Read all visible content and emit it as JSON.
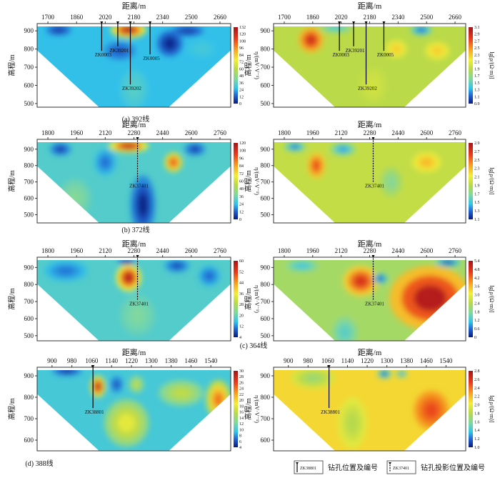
{
  "axis_titles": {
    "x": "距离/m",
    "y": "高程/m",
    "eta": "η/(mV·V⁻¹)",
    "rho": "lg[ρ/(Ω·m)]"
  },
  "captions": [
    "(a) 392线",
    "(b) 372线",
    "(c) 364线",
    "(d) 388线"
  ],
  "legend": {
    "drill_id": "ZK38801",
    "drill_label": "钻孔位置及编号",
    "proj_id": "ZK37401",
    "proj_label": "钻孔投影位置及编号"
  },
  "colors": {
    "frame": "#333333",
    "text": "#111111"
  },
  "chart_data": [
    {
      "type": "heatmap",
      "panel": "392-eta",
      "xlim": [
        1640,
        2720
      ],
      "ylim": [
        480,
        940
      ],
      "x_ticks": [
        "1700",
        "1860",
        "2020",
        "2180",
        "2340",
        "2500",
        "2660"
      ],
      "x_tick_values": [
        1700,
        1860,
        2020,
        2180,
        2340,
        2500,
        2660
      ],
      "y_ticks": [
        "900",
        "800",
        "700",
        "600",
        "500"
      ],
      "y_tick_values": [
        900,
        800,
        700,
        600,
        500
      ],
      "colorbar": {
        "title_key": "eta",
        "range": [
          0,
          132
        ],
        "ticks": [
          "0",
          "12",
          "24",
          "36",
          "48",
          "60",
          "72",
          "84",
          "96",
          "108",
          "120",
          "132"
        ]
      },
      "base_value": 26,
      "anomalies": [
        {
          "x": 1760,
          "z": 905,
          "rx": 70,
          "rz": 30,
          "v": 6
        },
        {
          "x": 2150,
          "z": 905,
          "rx": 100,
          "rz": 45,
          "v": 128
        },
        {
          "x": 2100,
          "z": 790,
          "rx": 90,
          "rz": 50,
          "v": 12
        },
        {
          "x": 2380,
          "z": 830,
          "rx": 70,
          "rz": 70,
          "v": 2
        },
        {
          "x": 2480,
          "z": 900,
          "rx": 90,
          "rz": 30,
          "v": 6
        },
        {
          "x": 2180,
          "z": 580,
          "rx": 80,
          "rz": 110,
          "v": 34
        },
        {
          "x": 2560,
          "z": 800,
          "rx": 80,
          "rz": 50,
          "v": 30
        }
      ],
      "boreholes": [
        {
          "id": "ZK0003",
          "x": 2000,
          "bottom": 790,
          "projected": false
        },
        {
          "id": "ZK39201",
          "x": 2090,
          "bottom": 815,
          "projected": false
        },
        {
          "id": "ZK39202",
          "x": 2160,
          "bottom": 605,
          "projected": false
        },
        {
          "id": "ZK0005",
          "x": 2270,
          "bottom": 770,
          "projected": false
        }
      ]
    },
    {
      "type": "heatmap",
      "panel": "392-rho",
      "xlim": [
        1640,
        2720
      ],
      "ylim": [
        480,
        940
      ],
      "x_ticks": [
        "1700",
        "1860",
        "2020",
        "2180",
        "2340",
        "2500",
        "2660"
      ],
      "x_tick_values": [
        1700,
        1860,
        2020,
        2180,
        2340,
        2500,
        2660
      ],
      "y_ticks": [
        "900",
        "800",
        "700",
        "600",
        "500"
      ],
      "y_tick_values": [
        900,
        800,
        700,
        600,
        500
      ],
      "colorbar": {
        "title_key": "rho",
        "range": [
          0.9,
          3.1
        ],
        "ticks": [
          "0.9",
          "1.1",
          "1.3",
          "1.5",
          "1.7",
          "1.9",
          "2.1",
          "2.3",
          "2.5",
          "2.7",
          "2.9",
          "3.1"
        ]
      },
      "base_value": 1.9,
      "anomalies": [
        {
          "x": 1850,
          "z": 850,
          "rx": 70,
          "rz": 70,
          "v": 2.9
        },
        {
          "x": 1990,
          "z": 915,
          "rx": 90,
          "rz": 25,
          "v": 1.4
        },
        {
          "x": 2470,
          "z": 905,
          "rx": 60,
          "rz": 30,
          "v": 1.1
        },
        {
          "x": 2330,
          "z": 800,
          "rx": 60,
          "rz": 50,
          "v": 2.3
        },
        {
          "x": 2560,
          "z": 790,
          "rx": 70,
          "rz": 50,
          "v": 2.3
        },
        {
          "x": 2200,
          "z": 600,
          "rx": 80,
          "rz": 100,
          "v": 2.0
        }
      ],
      "boreholes": [
        {
          "id": "ZK0003",
          "x": 2010,
          "bottom": 790,
          "projected": false
        },
        {
          "id": "ZK39201",
          "x": 2090,
          "bottom": 815,
          "projected": false
        },
        {
          "id": "ZK39202",
          "x": 2160,
          "bottom": 605,
          "projected": false
        },
        {
          "id": "ZK0005",
          "x": 2260,
          "bottom": 790,
          "projected": false
        }
      ]
    },
    {
      "type": "heatmap",
      "panel": "372-eta",
      "xlim": [
        1740,
        2820
      ],
      "ylim": [
        450,
        960
      ],
      "x_ticks": [
        "1800",
        "1960",
        "2120",
        "2280",
        "2440",
        "2600",
        "2760"
      ],
      "x_tick_values": [
        1800,
        1960,
        2120,
        2280,
        2440,
        2600,
        2760
      ],
      "y_ticks": [
        "900",
        "800",
        "700",
        "600",
        "500"
      ],
      "y_tick_values": [
        900,
        800,
        700,
        600,
        500
      ],
      "colorbar": {
        "title_key": "eta",
        "range": [
          0,
          120
        ],
        "ticks": [
          "0",
          "12",
          "24",
          "36",
          "48",
          "60",
          "72",
          "84",
          "96",
          "108",
          "120"
        ]
      },
      "base_value": 30,
      "anomalies": [
        {
          "x": 1870,
          "z": 900,
          "rx": 60,
          "rz": 40,
          "v": 6
        },
        {
          "x": 2250,
          "z": 920,
          "rx": 110,
          "rz": 40,
          "v": 115
        },
        {
          "x": 2500,
          "z": 820,
          "rx": 50,
          "rz": 60,
          "v": 100
        },
        {
          "x": 2330,
          "z": 560,
          "rx": 70,
          "rz": 180,
          "v": 2
        },
        {
          "x": 2620,
          "z": 900,
          "rx": 60,
          "rz": 40,
          "v": 6
        },
        {
          "x": 2120,
          "z": 820,
          "rx": 60,
          "rz": 80,
          "v": 14
        },
        {
          "x": 1950,
          "z": 600,
          "rx": 90,
          "rz": 120,
          "v": 40
        }
      ],
      "boreholes": [
        {
          "id": "ZK37401",
          "x": 2300,
          "bottom": 700,
          "projected": true
        }
      ]
    },
    {
      "type": "heatmap",
      "panel": "372-rho",
      "xlim": [
        1740,
        2820
      ],
      "ylim": [
        450,
        960
      ],
      "x_ticks": [
        "1800",
        "1960",
        "2120",
        "2280",
        "2440",
        "2600",
        "2760"
      ],
      "x_tick_values": [
        1800,
        1960,
        2120,
        2280,
        2440,
        2600,
        2760
      ],
      "y_ticks": [
        "900",
        "800",
        "700",
        "600",
        "500"
      ],
      "y_tick_values": [
        900,
        800,
        700,
        600,
        500
      ],
      "colorbar": {
        "title_key": "rho",
        "range": [
          1.1,
          2.9
        ],
        "ticks": [
          "1.1",
          "1.3",
          "1.5",
          "1.7",
          "1.9",
          "2.1",
          "2.3",
          "2.5",
          "2.7",
          "2.9"
        ]
      },
      "base_value": 1.95,
      "anomalies": [
        {
          "x": 1860,
          "z": 915,
          "rx": 60,
          "rz": 30,
          "v": 1.3
        },
        {
          "x": 1980,
          "z": 800,
          "rx": 50,
          "rz": 80,
          "v": 2.6
        },
        {
          "x": 2130,
          "z": 900,
          "rx": 70,
          "rz": 40,
          "v": 1.4
        },
        {
          "x": 2600,
          "z": 820,
          "rx": 80,
          "rz": 60,
          "v": 2.3
        },
        {
          "x": 2400,
          "z": 700,
          "rx": 60,
          "rz": 90,
          "v": 1.7
        }
      ],
      "boreholes": [
        {
          "id": "ZK37401",
          "x": 2300,
          "bottom": 700,
          "projected": true
        }
      ]
    },
    {
      "type": "heatmap",
      "panel": "364-eta",
      "xlim": [
        1740,
        2820
      ],
      "ylim": [
        470,
        960
      ],
      "x_ticks": [
        "1800",
        "1960",
        "2120",
        "2280",
        "2440",
        "2600",
        "2760"
      ],
      "x_tick_values": [
        1800,
        1960,
        2120,
        2280,
        2440,
        2600,
        2760
      ],
      "y_ticks": [
        "900",
        "800",
        "700",
        "600",
        "500"
      ],
      "y_tick_values": [
        900,
        800,
        700,
        600,
        500
      ],
      "colorbar": {
        "title_key": "eta",
        "range": [
          4,
          60
        ],
        "ticks": [
          "4",
          "12",
          "20",
          "28",
          "36",
          "44",
          "52",
          "60"
        ]
      },
      "base_value": 18,
      "anomalies": [
        {
          "x": 2250,
          "z": 840,
          "rx": 70,
          "rz": 80,
          "v": 58
        },
        {
          "x": 2240,
          "z": 935,
          "rx": 50,
          "rz": 20,
          "v": 4
        },
        {
          "x": 1900,
          "z": 880,
          "rx": 120,
          "rz": 60,
          "v": 11
        },
        {
          "x": 2520,
          "z": 910,
          "rx": 70,
          "rz": 40,
          "v": 8
        },
        {
          "x": 2700,
          "z": 850,
          "rx": 60,
          "rz": 60,
          "v": 10
        },
        {
          "x": 2300,
          "z": 620,
          "rx": 100,
          "rz": 120,
          "v": 22
        }
      ],
      "boreholes": [
        {
          "id": "ZK37401",
          "x": 2300,
          "bottom": 710,
          "projected": true
        }
      ]
    },
    {
      "type": "heatmap",
      "panel": "364-rho",
      "xlim": [
        1740,
        2820
      ],
      "ylim": [
        470,
        960
      ],
      "x_ticks": [
        "1800",
        "1960",
        "2120",
        "2280",
        "2440",
        "2600",
        "2760"
      ],
      "x_tick_values": [
        1800,
        1960,
        2120,
        2280,
        2440,
        2600,
        2760
      ],
      "y_ticks": [
        "900",
        "800",
        "700",
        "600",
        "500"
      ],
      "y_tick_values": [
        900,
        800,
        700,
        600,
        500
      ],
      "colorbar": {
        "title_key": "rho",
        "range": [
          0,
          5.4
        ],
        "ticks": [
          "0",
          "0.6",
          "1.2",
          "1.8",
          "2.4",
          "3.0",
          "3.6",
          "4.2",
          "4.8",
          "5.4"
        ]
      },
      "base_value": 2.2,
      "anomalies": [
        {
          "x": 2620,
          "z": 720,
          "rx": 230,
          "rz": 190,
          "v": 5.2
        },
        {
          "x": 2230,
          "z": 820,
          "rx": 100,
          "rz": 90,
          "v": 4.8
        },
        {
          "x": 2340,
          "z": 835,
          "rx": 40,
          "rz": 30,
          "v": 0.4
        },
        {
          "x": 2720,
          "z": 930,
          "rx": 70,
          "rz": 25,
          "v": 0.3
        },
        {
          "x": 1900,
          "z": 910,
          "rx": 90,
          "rz": 35,
          "v": 1.2
        },
        {
          "x": 2140,
          "z": 520,
          "rx": 70,
          "rz": 90,
          "v": 1.4
        }
      ],
      "boreholes": [
        {
          "id": "ZK37401",
          "x": 2300,
          "bottom": 710,
          "projected": true
        }
      ]
    },
    {
      "type": "heatmap",
      "panel": "388-eta",
      "xlim": [
        840,
        1620
      ],
      "ylim": [
        550,
        940
      ],
      "x_ticks": [
        "900",
        "980",
        "1060",
        "1140",
        "1220",
        "1300",
        "1380",
        "1460",
        "1540"
      ],
      "x_tick_values": [
        900,
        980,
        1060,
        1140,
        1220,
        1300,
        1380,
        1460,
        1540
      ],
      "y_ticks": [
        "900",
        "800",
        "700",
        "600"
      ],
      "y_tick_values": [
        900,
        800,
        700,
        600
      ],
      "colorbar": {
        "title_key": "eta",
        "range": [
          4,
          30
        ],
        "ticks": [
          "4",
          "6",
          "8",
          "10",
          "12",
          "14",
          "16",
          "18",
          "20",
          "22",
          "24",
          "26",
          "28",
          "30"
        ]
      },
      "base_value": 10,
      "anomalies": [
        {
          "x": 1085,
          "z": 850,
          "rx": 30,
          "rz": 50,
          "v": 29
        },
        {
          "x": 960,
          "z": 925,
          "rx": 60,
          "rz": 25,
          "v": 5
        },
        {
          "x": 1160,
          "z": 860,
          "rx": 25,
          "rz": 40,
          "v": 6
        },
        {
          "x": 1240,
          "z": 860,
          "rx": 30,
          "rz": 40,
          "v": 16
        },
        {
          "x": 1570,
          "z": 790,
          "rx": 50,
          "rz": 90,
          "v": 24
        },
        {
          "x": 1200,
          "z": 680,
          "rx": 90,
          "rz": 110,
          "v": 18
        },
        {
          "x": 1420,
          "z": 820,
          "rx": 90,
          "rz": 60,
          "v": 16
        }
      ],
      "boreholes": [
        {
          "id": "ZK38801",
          "x": 1065,
          "bottom": 750,
          "projected": false
        }
      ]
    },
    {
      "type": "heatmap",
      "panel": "388-rho",
      "xlim": [
        840,
        1620
      ],
      "ylim": [
        550,
        940
      ],
      "x_ticks": [
        "900",
        "980",
        "1060",
        "1140",
        "1220",
        "1300",
        "1380",
        "1460",
        "1540"
      ],
      "x_tick_values": [
        900,
        980,
        1060,
        1140,
        1220,
        1300,
        1380,
        1460,
        1540
      ],
      "y_ticks": [
        "900",
        "800",
        "700",
        "600"
      ],
      "y_tick_values": [
        900,
        800,
        700,
        600
      ],
      "colorbar": {
        "title_key": "rho",
        "range": [
          1.0,
          2.8
        ],
        "ticks": [
          "1.0",
          "1.2",
          "1.4",
          "1.6",
          "1.8",
          "2.0",
          "2.2",
          "2.4",
          "2.6",
          "2.8"
        ]
      },
      "base_value": 2.1,
      "anomalies": [
        {
          "x": 1480,
          "z": 740,
          "rx": 70,
          "rz": 90,
          "v": 2.5
        },
        {
          "x": 1290,
          "z": 910,
          "rx": 30,
          "rz": 25,
          "v": 1.1
        },
        {
          "x": 1360,
          "z": 910,
          "rx": 25,
          "rz": 20,
          "v": 1.3
        },
        {
          "x": 1000,
          "z": 890,
          "rx": 90,
          "rz": 50,
          "v": 1.7
        },
        {
          "x": 1160,
          "z": 680,
          "rx": 60,
          "rz": 120,
          "v": 1.8
        }
      ],
      "boreholes": [
        {
          "id": "ZK38801",
          "x": 1065,
          "bottom": 750,
          "projected": false
        }
      ]
    }
  ]
}
